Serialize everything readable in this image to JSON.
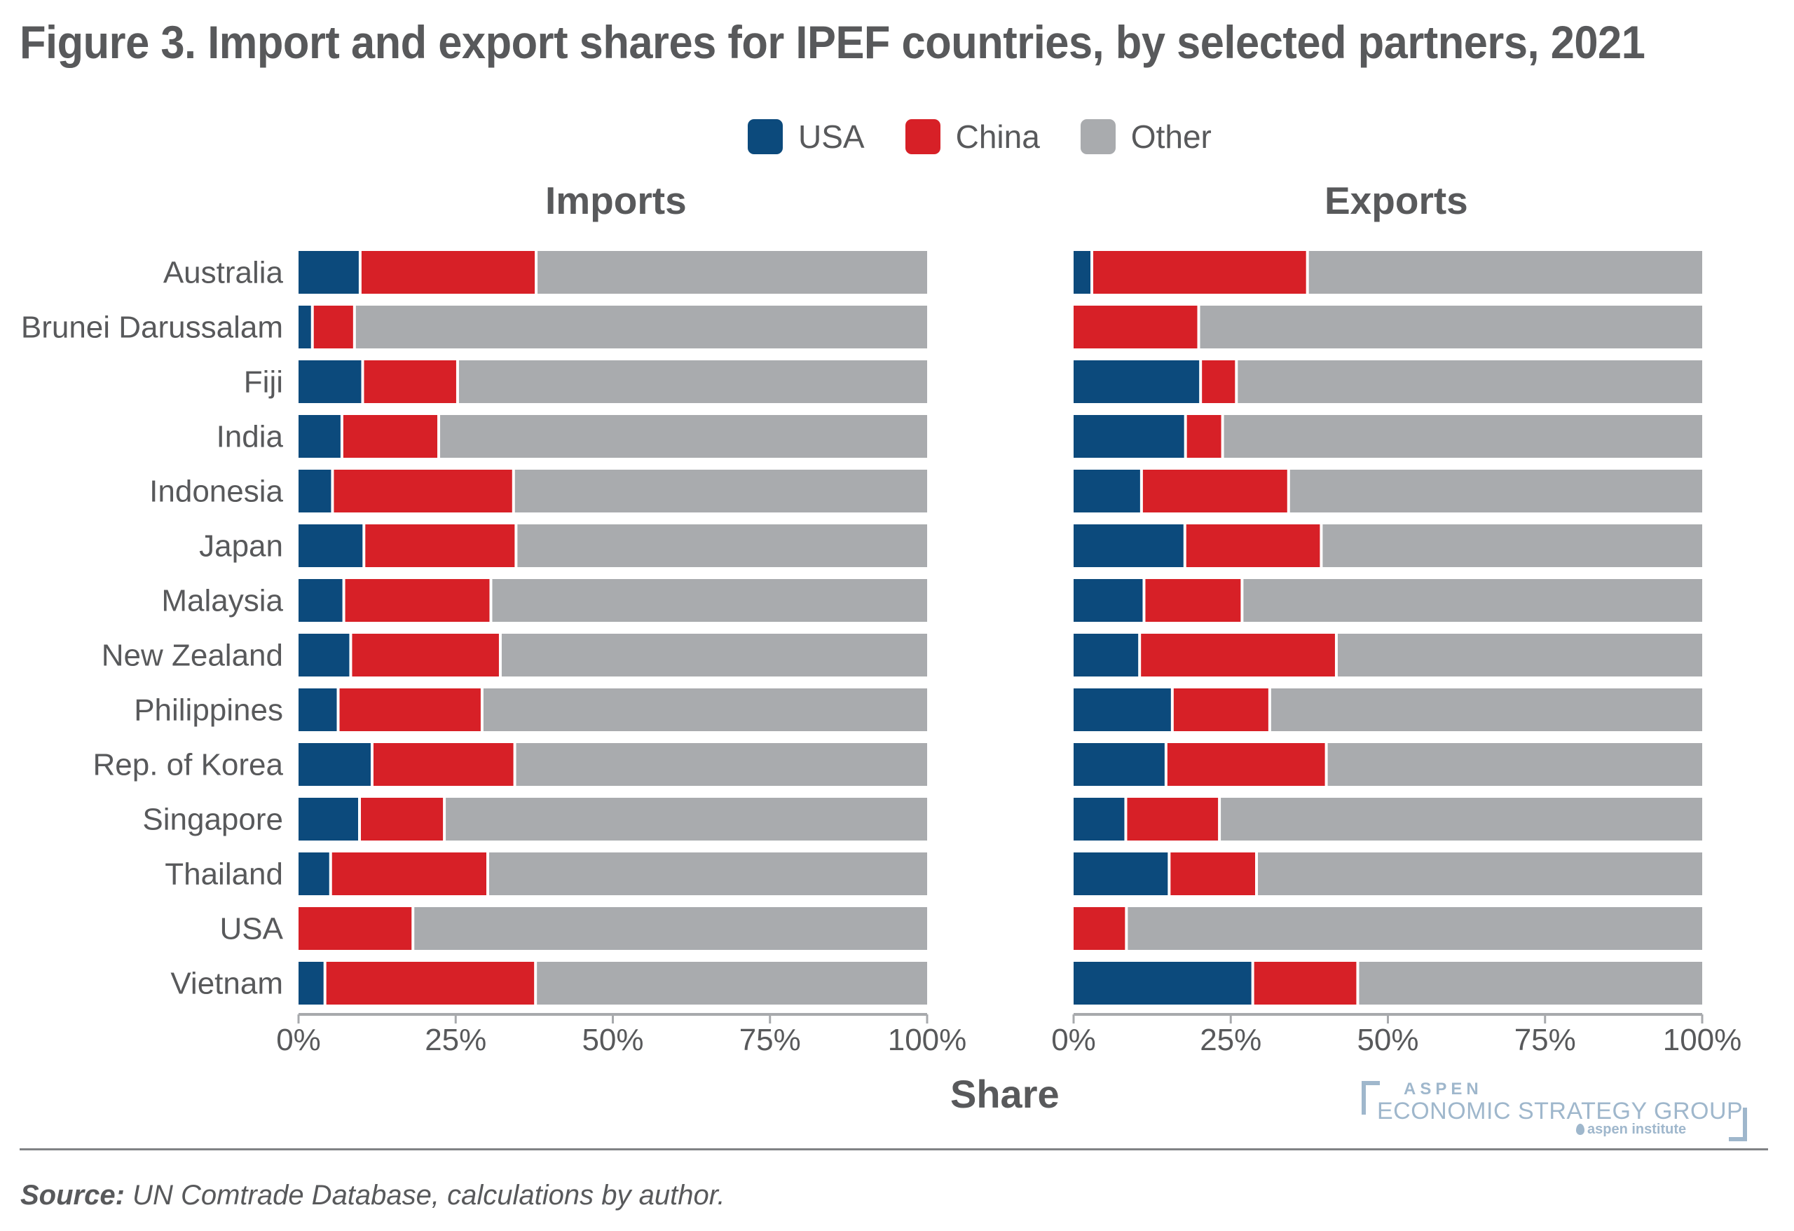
{
  "figure": {
    "title": "Figure 3. Import and export shares for IPEF countries, by selected partners, 2021",
    "source_label": "Source:",
    "source_text": " UN Comtrade Database, calculations by author."
  },
  "legend": [
    {
      "label": "USA",
      "color": "#0c4a7c"
    },
    {
      "label": "China",
      "color": "#d72027"
    },
    {
      "label": "Other",
      "color": "#a9abae"
    }
  ],
  "logo": {
    "line1": "ASPEN",
    "line2": "ECONOMIC STRATEGY GROUP",
    "line3": "aspen institute"
  },
  "chart_data": {
    "type": "bar",
    "orientation": "horizontal",
    "stacked": true,
    "title": "Figure 3. Import and export shares for IPEF countries, by selected partners, 2021",
    "xlabel": "Share",
    "ylabel": "",
    "xlim": [
      0,
      100
    ],
    "x_ticks": [
      "0%",
      "25%",
      "50%",
      "75%",
      "100%"
    ],
    "grid": false,
    "legend_position": "top-center",
    "categories": [
      "Australia",
      "Brunei Darussalam",
      "Fiji",
      "India",
      "Indonesia",
      "Japan",
      "Malaysia",
      "New Zealand",
      "Philippines",
      "Rep. of Korea",
      "Singapore",
      "Thailand",
      "USA",
      "Vietnam"
    ],
    "panels": [
      {
        "name": "Imports",
        "series": [
          {
            "name": "USA",
            "values": [
              9.8,
              2.2,
              10.2,
              6.9,
              5.4,
              10.4,
              7.2,
              8.3,
              6.3,
              11.7,
              9.7,
              5.1,
              0.0,
              4.2
            ]
          },
          {
            "name": "China",
            "values": [
              28.0,
              6.7,
              15.1,
              15.4,
              28.8,
              24.2,
              23.4,
              23.8,
              22.9,
              22.7,
              13.5,
              25.0,
              18.2,
              33.5
            ]
          },
          {
            "name": "Other",
            "values": [
              62.2,
              91.1,
              74.7,
              77.7,
              65.8,
              65.4,
              69.4,
              67.9,
              70.8,
              65.6,
              76.8,
              69.9,
              81.8,
              62.3
            ]
          }
        ]
      },
      {
        "name": "Exports",
        "series": [
          {
            "name": "USA",
            "values": [
              2.9,
              0.0,
              20.2,
              17.8,
              10.8,
              17.7,
              11.2,
              10.5,
              15.7,
              14.7,
              8.3,
              15.2,
              0.0,
              28.5
            ]
          },
          {
            "name": "China",
            "values": [
              34.3,
              19.9,
              5.7,
              5.9,
              23.4,
              21.7,
              15.6,
              31.3,
              15.5,
              25.5,
              14.9,
              13.9,
              8.4,
              16.7
            ]
          },
          {
            "name": "Other",
            "values": [
              62.8,
              80.1,
              74.1,
              76.3,
              65.8,
              60.6,
              73.2,
              58.2,
              68.8,
              59.8,
              76.8,
              70.9,
              91.6,
              54.8
            ]
          }
        ]
      }
    ]
  }
}
